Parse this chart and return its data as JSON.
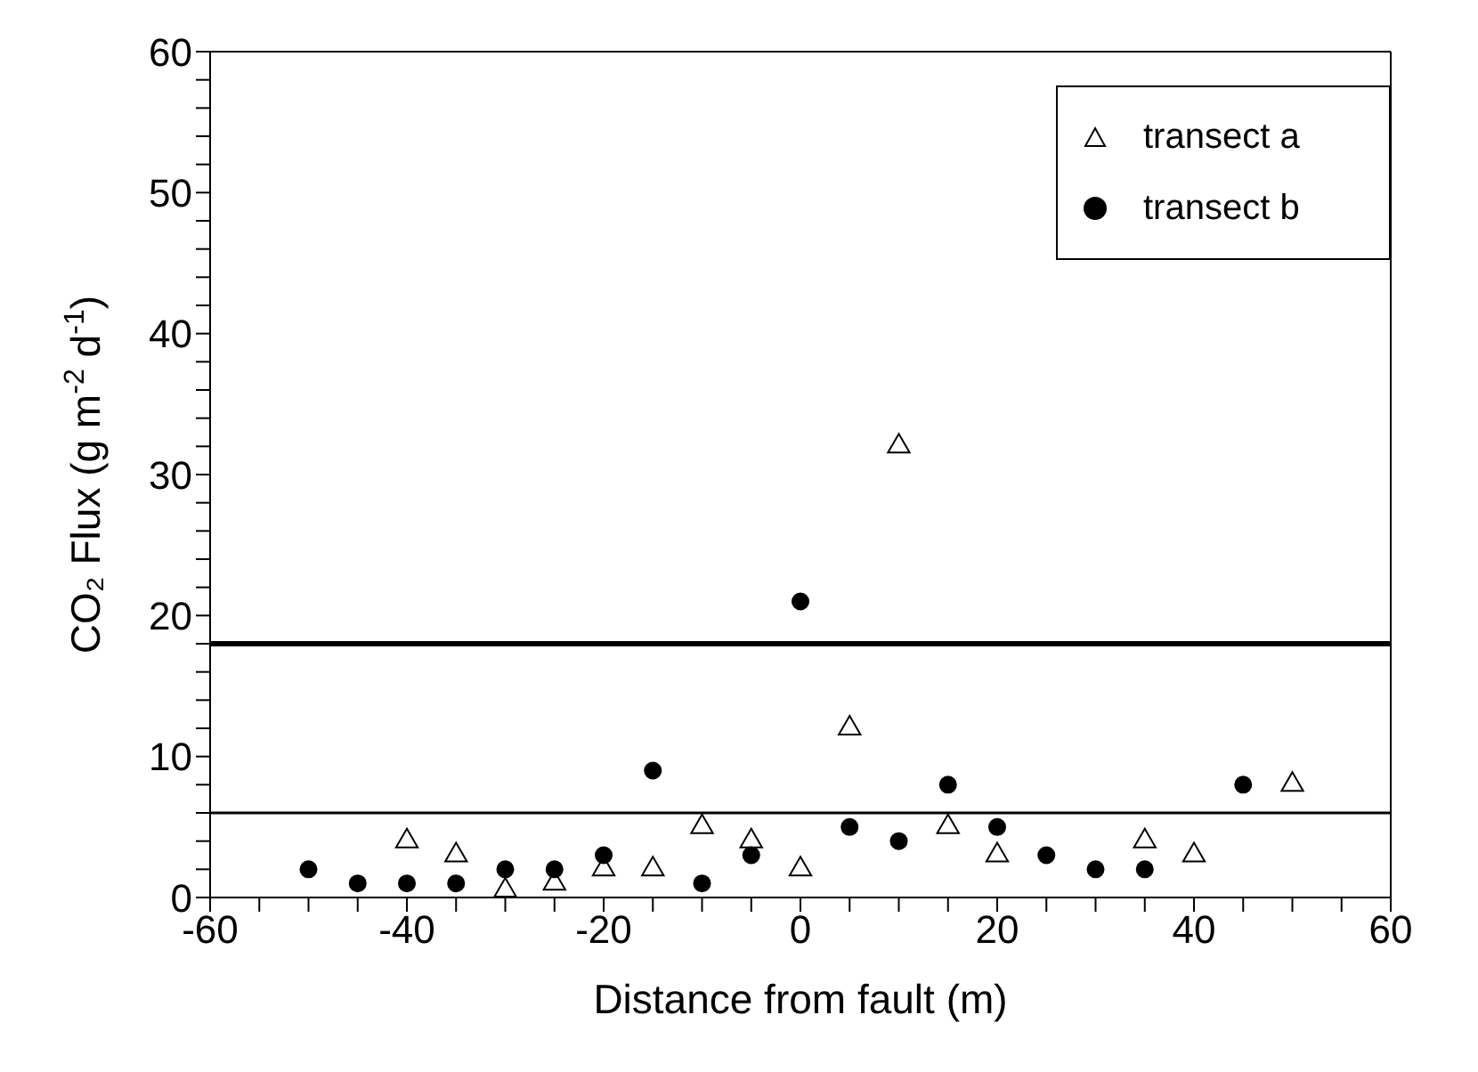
{
  "chart_data": {
    "type": "scatter",
    "xlabel": "Distance from fault (m)",
    "ylabel": "CO₂ Flux (g m$^{-2}$ d$^{-1}$)",
    "xlim": [
      -60,
      60
    ],
    "xticks": [
      -60,
      {
        "value": -55,
        "label": null
      },
      {
        "value": -50,
        "label": null
      },
      {
        "value": -45,
        "label": null
      },
      -40,
      {
        "value": -35,
        "label": null
      },
      {
        "value": -30,
        "label": null
      },
      {
        "value": -25,
        "label": null
      },
      -20,
      {
        "value": -15,
        "label": null
      },
      {
        "value": -10,
        "label": null
      },
      {
        "value": -5,
        "label": null
      },
      0,
      {
        "value": 5,
        "label": null
      },
      {
        "value": 10,
        "label": null
      },
      {
        "value": 15,
        "label": null
      },
      20,
      {
        "value": 25,
        "label": null
      },
      {
        "value": 30,
        "label": null
      },
      {
        "value": 35,
        "label": null
      },
      40,
      {
        "value": 45,
        "label": null
      },
      {
        "value": 50,
        "label": null
      },
      {
        "value": 55,
        "label": null
      },
      60
    ],
    "ylim": [
      0,
      60
    ],
    "yticks": [
      0,
      {
        "value": 2,
        "label": null
      },
      {
        "value": 4,
        "label": null
      },
      {
        "value": 6,
        "label": null
      },
      {
        "value": 8,
        "label": null
      },
      10,
      {
        "value": 12,
        "label": null
      },
      {
        "value": 14,
        "label": null
      },
      {
        "value": 16,
        "label": null
      },
      {
        "value": 18,
        "label": null
      },
      20,
      {
        "value": 22,
        "label": null
      },
      {
        "value": 24,
        "label": null
      },
      {
        "value": 26,
        "label": null
      },
      {
        "value": 28,
        "label": null
      },
      30,
      {
        "value": 32,
        "label": null
      },
      {
        "value": 34,
        "label": null
      },
      {
        "value": 36,
        "label": null
      },
      {
        "value": 38,
        "label": null
      },
      40,
      {
        "value": 42,
        "label": null
      },
      {
        "value": 44,
        "label": null
      },
      {
        "value": 46,
        "label": null
      },
      {
        "value": 48,
        "label": null
      },
      50,
      {
        "value": 52,
        "label": null
      },
      {
        "value": 54,
        "label": null
      },
      {
        "value": 56,
        "label": null
      },
      {
        "value": 58,
        "label": null
      },
      60
    ],
    "grid": false,
    "legend": "top right",
    "series": [
      {
        "name": "transect a",
        "color": "#000000",
        "marker": "triangle",
        "x": [
          -40,
          -35,
          -30,
          -25,
          -20,
          -15,
          -10,
          -5,
          0,
          5,
          10,
          15,
          20,
          35,
          40,
          50
        ],
        "values": [
          4,
          3,
          0.5,
          1,
          2,
          2,
          5,
          4,
          2,
          12,
          32,
          5,
          3,
          4,
          3,
          8
        ]
      },
      {
        "name": "transect b",
        "color": "#000000",
        "marker": "circle",
        "x": [
          -50,
          -45,
          -40,
          -35,
          -30,
          -25,
          -20,
          -15,
          -10,
          -5,
          0,
          5,
          10,
          15,
          20,
          25,
          30,
          35,
          45
        ],
        "values": [
          2,
          1,
          1,
          1,
          2,
          2,
          3,
          9,
          1,
          3,
          21,
          5,
          4,
          8,
          5,
          3,
          2,
          2,
          8
        ]
      }
    ],
    "ref_lines": [
      {
        "axis": "y",
        "value": 18,
        "color": "#000000",
        "line_style": "solid"
      },
      {
        "axis": "y",
        "value": 6,
        "color": "#000000",
        "line_style": "solid"
      }
    ]
  }
}
